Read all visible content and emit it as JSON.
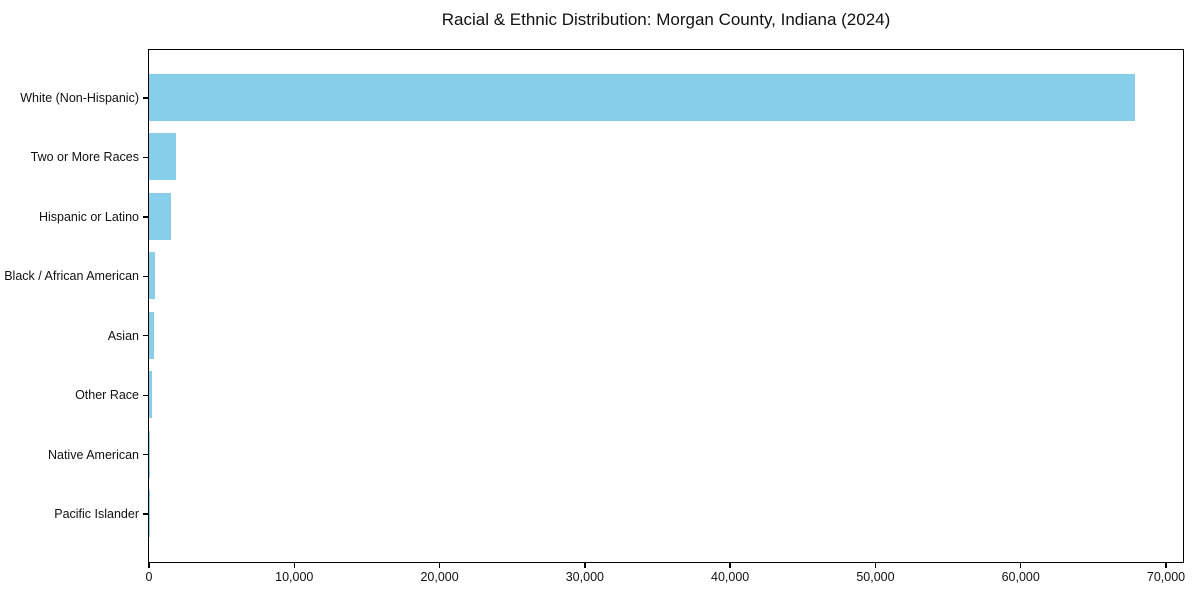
{
  "chart_data": {
    "type": "bar",
    "orientation": "horizontal",
    "title": "Racial & Ethnic Distribution: Morgan County, Indiana (2024)",
    "categories": [
      "White (Non-Hispanic)",
      "Two or More Races",
      "Hispanic or Latino",
      "Black / African American",
      "Asian",
      "Other Race",
      "Native American",
      "Pacific Islander"
    ],
    "values": [
      67870,
      1900,
      1530,
      450,
      350,
      230,
      70,
      15
    ],
    "xlabel": "",
    "ylabel": "",
    "xlim": [
      0,
      71100
    ],
    "xticks": [
      {
        "value": 0,
        "label": "0"
      },
      {
        "value": 10000,
        "label": "10,000"
      },
      {
        "value": 20000,
        "label": "20,000"
      },
      {
        "value": 30000,
        "label": "30,000"
      },
      {
        "value": 40000,
        "label": "40,000"
      },
      {
        "value": 50000,
        "label": "50,000"
      },
      {
        "value": 60000,
        "label": "60,000"
      },
      {
        "value": 70000,
        "label": "70,000"
      }
    ],
    "grid": false,
    "legend": "none",
    "bar_color": "#87CEEB",
    "frame_color": "#000000",
    "text_color": "#111111",
    "background_color": "#ffffff"
  }
}
